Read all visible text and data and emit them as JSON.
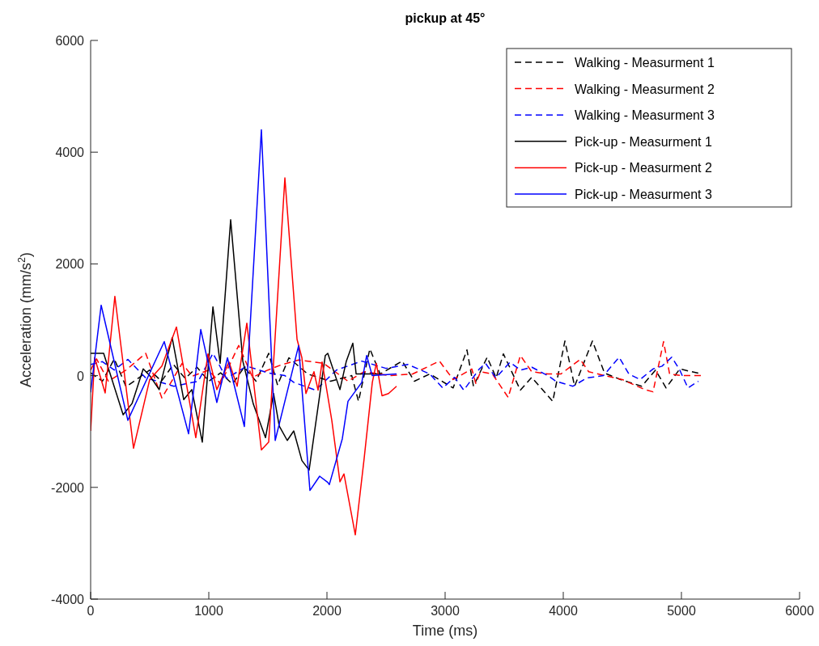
{
  "chart_data": {
    "type": "line",
    "title": "pickup at 45°",
    "xlabel": "Time (ms)",
    "ylabel": "Acceleration (mm/s$^{2}$)",
    "xlim": [
      0,
      6000
    ],
    "xticks": [
      0,
      1000,
      2000,
      3000,
      4000,
      5000,
      6000
    ],
    "ylim": [
      -4000,
      6000
    ],
    "yticks": [
      -4000,
      -2000,
      0,
      2000,
      4000,
      6000
    ],
    "grid": false,
    "legend": "top right",
    "marker": "none",
    "series": [
      {
        "name": "Walking - Measurment 1",
        "color": "#000000",
        "line_style": "dashed",
        "x": [
          0,
          100,
          200,
          300,
          400,
          500,
          600,
          700,
          800,
          900,
          1000,
          1100,
          1200,
          1300,
          1400,
          1507,
          1582,
          1678,
          1836,
          2030,
          2210,
          2267,
          2363,
          2450,
          2637,
          2740,
          2870,
          3068,
          3185,
          3240,
          3356,
          3432,
          3493,
          3637,
          3733,
          3911,
          4014,
          4096,
          4247,
          4349,
          4486,
          4664,
          4781,
          4870,
          4986,
          5171
        ],
        "values": [
          50,
          -100,
          300,
          -200,
          -50,
          100,
          -100,
          200,
          -50,
          150,
          -100,
          50,
          -150,
          150,
          -100,
          400,
          -170,
          320,
          30,
          -100,
          0,
          -460,
          480,
          30,
          260,
          -100,
          30,
          -220,
          460,
          -190,
          330,
          -40,
          390,
          -260,
          -30,
          -460,
          620,
          -190,
          620,
          45,
          -70,
          -190,
          100,
          -220,
          120,
          30
        ]
      },
      {
        "name": "Walking - Measurment 2",
        "color": "#ff0000",
        "line_style": "dashed",
        "x": [
          0,
          50,
          150,
          300,
          466,
          603,
          774,
          860,
          1000,
          1100,
          1253,
          1370,
          1500,
          1610,
          1760,
          1973,
          2178,
          2315,
          2534,
          2726,
          2952,
          3068,
          3226,
          3260,
          3300,
          3400,
          3534,
          3637,
          3733,
          3870,
          3980,
          4144,
          4215,
          4350,
          4500,
          4690,
          4760,
          4849,
          4900,
          5000,
          5180
        ],
        "values": [
          100,
          300,
          -100,
          100,
          400,
          -400,
          220,
          -10,
          100,
          -150,
          540,
          -30,
          100,
          190,
          280,
          220,
          -100,
          70,
          0,
          30,
          260,
          -70,
          120,
          -140,
          70,
          30,
          -390,
          360,
          70,
          30,
          30,
          290,
          70,
          0,
          -70,
          -250,
          -290,
          610,
          30,
          0,
          0
        ]
      },
      {
        "name": "Walking - Measurment 3",
        "color": "#0000ff",
        "line_style": "dashed",
        "x": [
          0,
          100,
          200,
          315,
          466,
          705,
          911,
          1035,
          1150,
          1322,
          1500,
          1644,
          1719,
          1904,
          2080,
          2295,
          2500,
          2685,
          2870,
          2980,
          3080,
          3158,
          3290,
          3342,
          3430,
          3548,
          3637,
          3735,
          3870,
          3938,
          4082,
          4200,
          4340,
          4473,
          4555,
          4650,
          4760,
          4836,
          4918,
          4986,
          5055,
          5144
        ],
        "values": [
          200,
          250,
          100,
          290,
          -40,
          -190,
          -100,
          400,
          -50,
          170,
          50,
          0,
          -120,
          -260,
          100,
          260,
          130,
          200,
          30,
          -220,
          -30,
          -260,
          120,
          220,
          -40,
          240,
          100,
          150,
          0,
          -100,
          -190,
          -40,
          0,
          330,
          30,
          -70,
          120,
          170,
          330,
          100,
          -220,
          -100
        ]
      },
      {
        "name": "Pick-up - Measurment 1",
        "color": "#000000",
        "line_style": "solid",
        "x": [
          0,
          110,
          275,
          350,
          445,
          500,
          580,
          690,
          788,
          856,
          945,
          1035,
          1096,
          1185,
          1288,
          1377,
          1480,
          1548,
          1596,
          1664,
          1719,
          1788,
          1849,
          1986,
          2007,
          2110,
          2164,
          2219,
          2247,
          2452
        ],
        "values": [
          400,
          400,
          -700,
          -500,
          120,
          0,
          -250,
          680,
          -430,
          -250,
          -1190,
          1230,
          220,
          2790,
          260,
          -510,
          -1110,
          -320,
          -900,
          -1160,
          -990,
          -1520,
          -1690,
          360,
          400,
          -250,
          260,
          580,
          30,
          30
        ]
      },
      {
        "name": "Pick-up - Measurment 2",
        "color": "#ff0000",
        "line_style": "solid",
        "x": [
          0,
          34,
          123,
          205,
          363,
          500,
          603,
          726,
          890,
          993,
          1068,
          1171,
          1240,
          1322,
          1445,
          1507,
          1644,
          1747,
          1788,
          1822,
          1890,
          1925,
          1959,
          2041,
          2110,
          2144,
          2240,
          2315,
          2384,
          2418,
          2466,
          2521,
          2589
        ],
        "values": [
          -990,
          320,
          -310,
          1420,
          -1300,
          -70,
          170,
          870,
          -1110,
          390,
          -250,
          245,
          -190,
          940,
          -1330,
          -1190,
          3540,
          650,
          320,
          -320,
          70,
          -260,
          245,
          -800,
          -1900,
          -1760,
          -2850,
          -1480,
          -120,
          220,
          -360,
          -320,
          -190
        ]
      },
      {
        "name": "Pick-up - Measurment 3",
        "color": "#0000ff",
        "line_style": "solid",
        "x": [
          0,
          89,
          315,
          623,
          829,
          932,
          1068,
          1158,
          1301,
          1445,
          1562,
          1760,
          1836,
          1856,
          1938,
          2007,
          2020,
          2130,
          2178,
          2295,
          2336,
          2383,
          2589
        ],
        "values": [
          -300,
          1260,
          -800,
          610,
          -1040,
          825,
          -480,
          320,
          -910,
          4400,
          -1160,
          535,
          -1520,
          -2055,
          -1800,
          -1910,
          -1950,
          -1130,
          -460,
          -120,
          360,
          0,
          30
        ]
      }
    ]
  }
}
